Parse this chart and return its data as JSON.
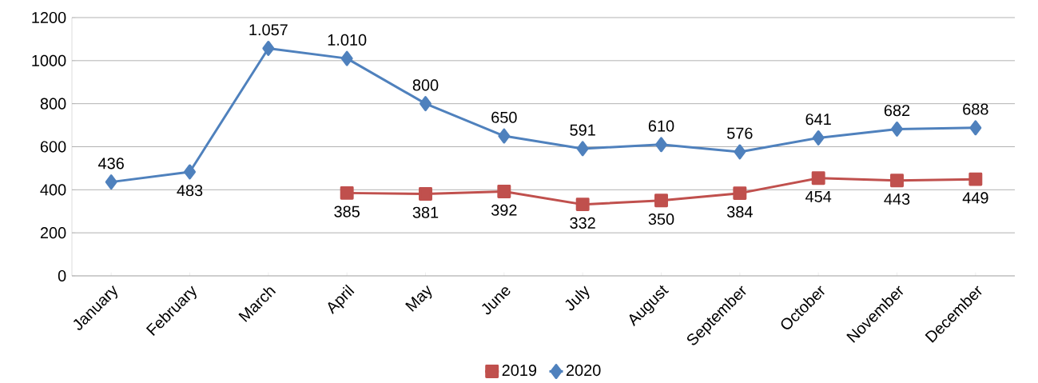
{
  "chart_data": {
    "type": "line",
    "categories": [
      "January",
      "February",
      "March",
      "April",
      "May",
      "June",
      "July",
      "August",
      "September",
      "October",
      "November",
      "December"
    ],
    "series": [
      {
        "name": "2019",
        "color": "#c0504d",
        "marker": "square",
        "values": [
          null,
          null,
          null,
          385,
          381,
          392,
          332,
          350,
          384,
          454,
          443,
          449
        ],
        "value_labels": [
          null,
          null,
          null,
          "385",
          "381",
          "392",
          "332",
          "350",
          "384",
          "454",
          "443",
          "449"
        ]
      },
      {
        "name": "2020",
        "color": "#4f81bd",
        "marker": "diamond",
        "values": [
          436,
          483,
          1057,
          1010,
          800,
          650,
          591,
          610,
          576,
          641,
          682,
          688
        ],
        "value_labels": [
          "436",
          "483",
          "1.057",
          "1.010",
          "800",
          "650",
          "591",
          "610",
          "576",
          "641",
          "682",
          "688"
        ]
      }
    ],
    "ylim": [
      0,
      1200
    ],
    "yticks": [
      0,
      200,
      400,
      600,
      800,
      1000,
      1200
    ],
    "grid": "y",
    "legend": "bottom",
    "line_style": "solid"
  }
}
